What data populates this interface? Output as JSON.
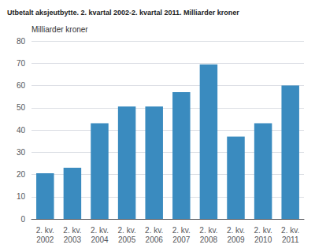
{
  "chart_data": {
    "type": "bar",
    "title": "Utbetalt aksjeutbytte. 2. kvartal 2002-2. kvartal 2011. Milliarder kroner",
    "ylabel": "Milliarder kroner",
    "categories": [
      "2. kv.\n2002",
      "2. kv.\n2003",
      "2. kv.\n2004",
      "2. kv.\n2005",
      "2. kv.\n2006",
      "2. kv.\n2007",
      "2. kv.\n2008",
      "2. kv.\n2009",
      "2. kv.\n2010",
      "2. kv.\n2011"
    ],
    "values": [
      20.5,
      23.0,
      43.0,
      50.5,
      50.5,
      57.0,
      69.5,
      37.0,
      43.0,
      60.0
    ],
    "color": "#3a8bbf",
    "ylim": [
      0,
      80
    ],
    "yticks": [
      0,
      10,
      20,
      30,
      40,
      50,
      60,
      70,
      80
    ],
    "grid": true
  }
}
